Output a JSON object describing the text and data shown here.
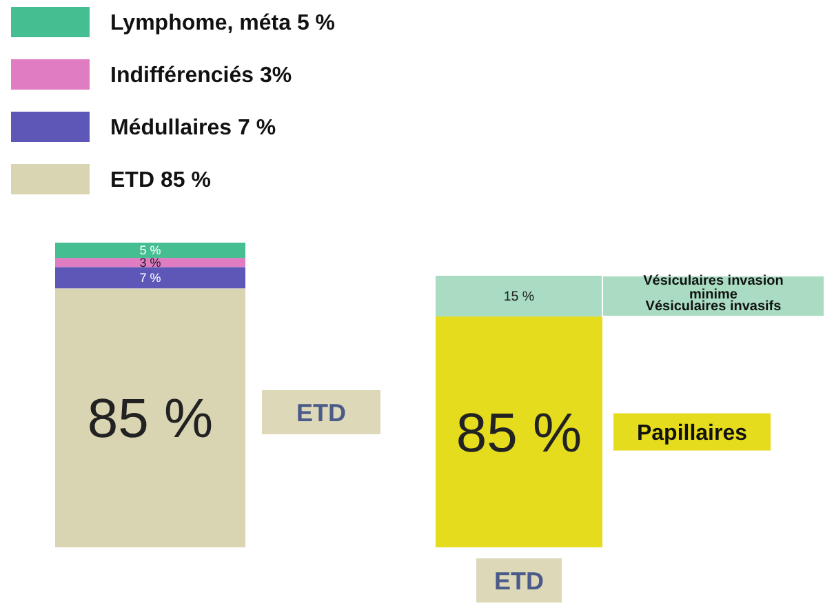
{
  "chart_data": [
    {
      "type": "bar",
      "stacked": true,
      "categories": [
        null
      ],
      "legend": "top",
      "annotations": [
        "ETD"
      ],
      "series": [
        {
          "name": "ETD  85 %",
          "color": "#d9d4b2",
          "values": [
            85
          ],
          "value_labels": [
            "85 %"
          ]
        },
        {
          "name": "Médullaires  7 %",
          "color": "#5d58b8",
          "values": [
            7
          ],
          "value_labels": [
            "7 %"
          ]
        },
        {
          "name": "Indifférenciés  3%",
          "color": "#e07cc2",
          "values": [
            3
          ],
          "value_labels": [
            "3 %"
          ]
        },
        {
          "name": "Lymphome, méta  5 %",
          "color": "#45bf92",
          "values": [
            5
          ],
          "value_labels": [
            "5 %"
          ]
        }
      ]
    },
    {
      "type": "bar",
      "stacked": true,
      "categories": [
        "ETD"
      ],
      "annotations": [
        "Vésiculaires invasion minime",
        "Vésiculaires invasifs"
      ],
      "series": [
        {
          "name": "Papillaires",
          "color": "#e6dc1e",
          "values": [
            85
          ],
          "value_labels": [
            "85 %"
          ]
        },
        {
          "color": "#a9dcc2",
          "values": [
            15
          ],
          "value_labels": [
            "15 %"
          ]
        }
      ]
    }
  ]
}
